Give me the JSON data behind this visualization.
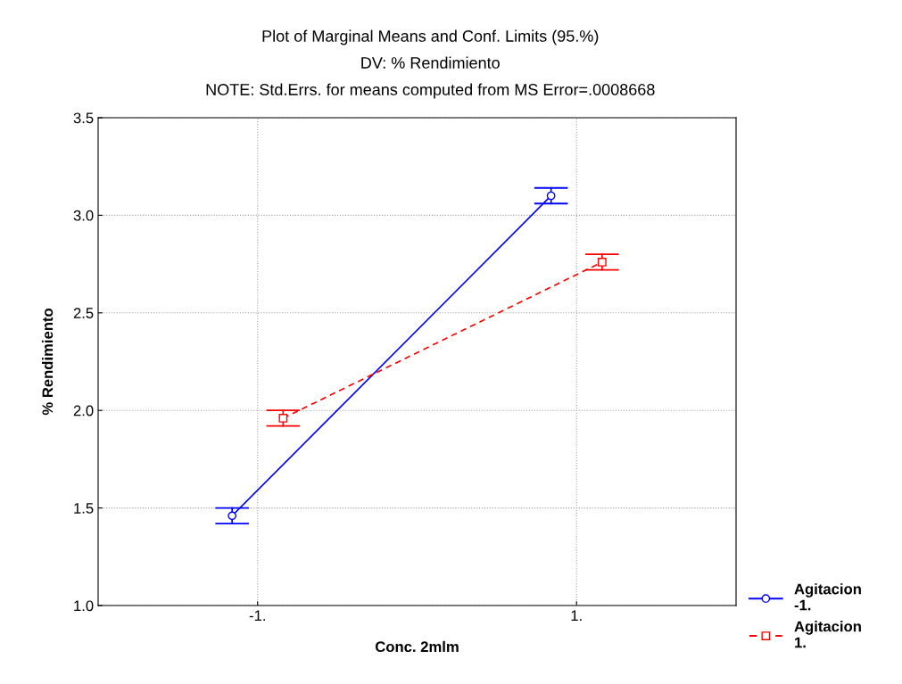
{
  "chart_data": {
    "type": "line",
    "title": "Plot of Marginal Means and Conf. Limits (95.%)",
    "subtitle": "DV: % Rendimiento",
    "annotations": [
      "NOTE: Std.Errs. for means computed from MS Error=.0008668"
    ],
    "xlabel": "Conc. 2mlm",
    "ylabel": "% Rendimiento",
    "categories": [
      "-1.",
      "1."
    ],
    "series": [
      {
        "name": "Agitacion\n-1.",
        "color": "#0000ff",
        "values": [
          1.46,
          3.1
        ],
        "errors": [
          0.04,
          0.04
        ],
        "marker": "circle",
        "line_style": "solid"
      },
      {
        "name": "Agitacion\n1.",
        "color": "#ff0000",
        "values": [
          1.96,
          2.76
        ],
        "errors": [
          0.04,
          0.04
        ],
        "marker": "square",
        "line_style": "dashed"
      }
    ],
    "ylim": [
      1.0,
      3.5
    ],
    "yticks": [
      {
        "value": 1.0,
        "label": "1.0"
      },
      {
        "value": 1.5,
        "label": "1.5"
      },
      {
        "value": 2.0,
        "label": "2.0"
      },
      {
        "value": 2.5,
        "label": "2.5"
      },
      {
        "value": 3.0,
        "label": "3.0"
      },
      {
        "value": 3.5,
        "label": "3.5"
      }
    ],
    "grid": true,
    "legend": "bottom right"
  }
}
